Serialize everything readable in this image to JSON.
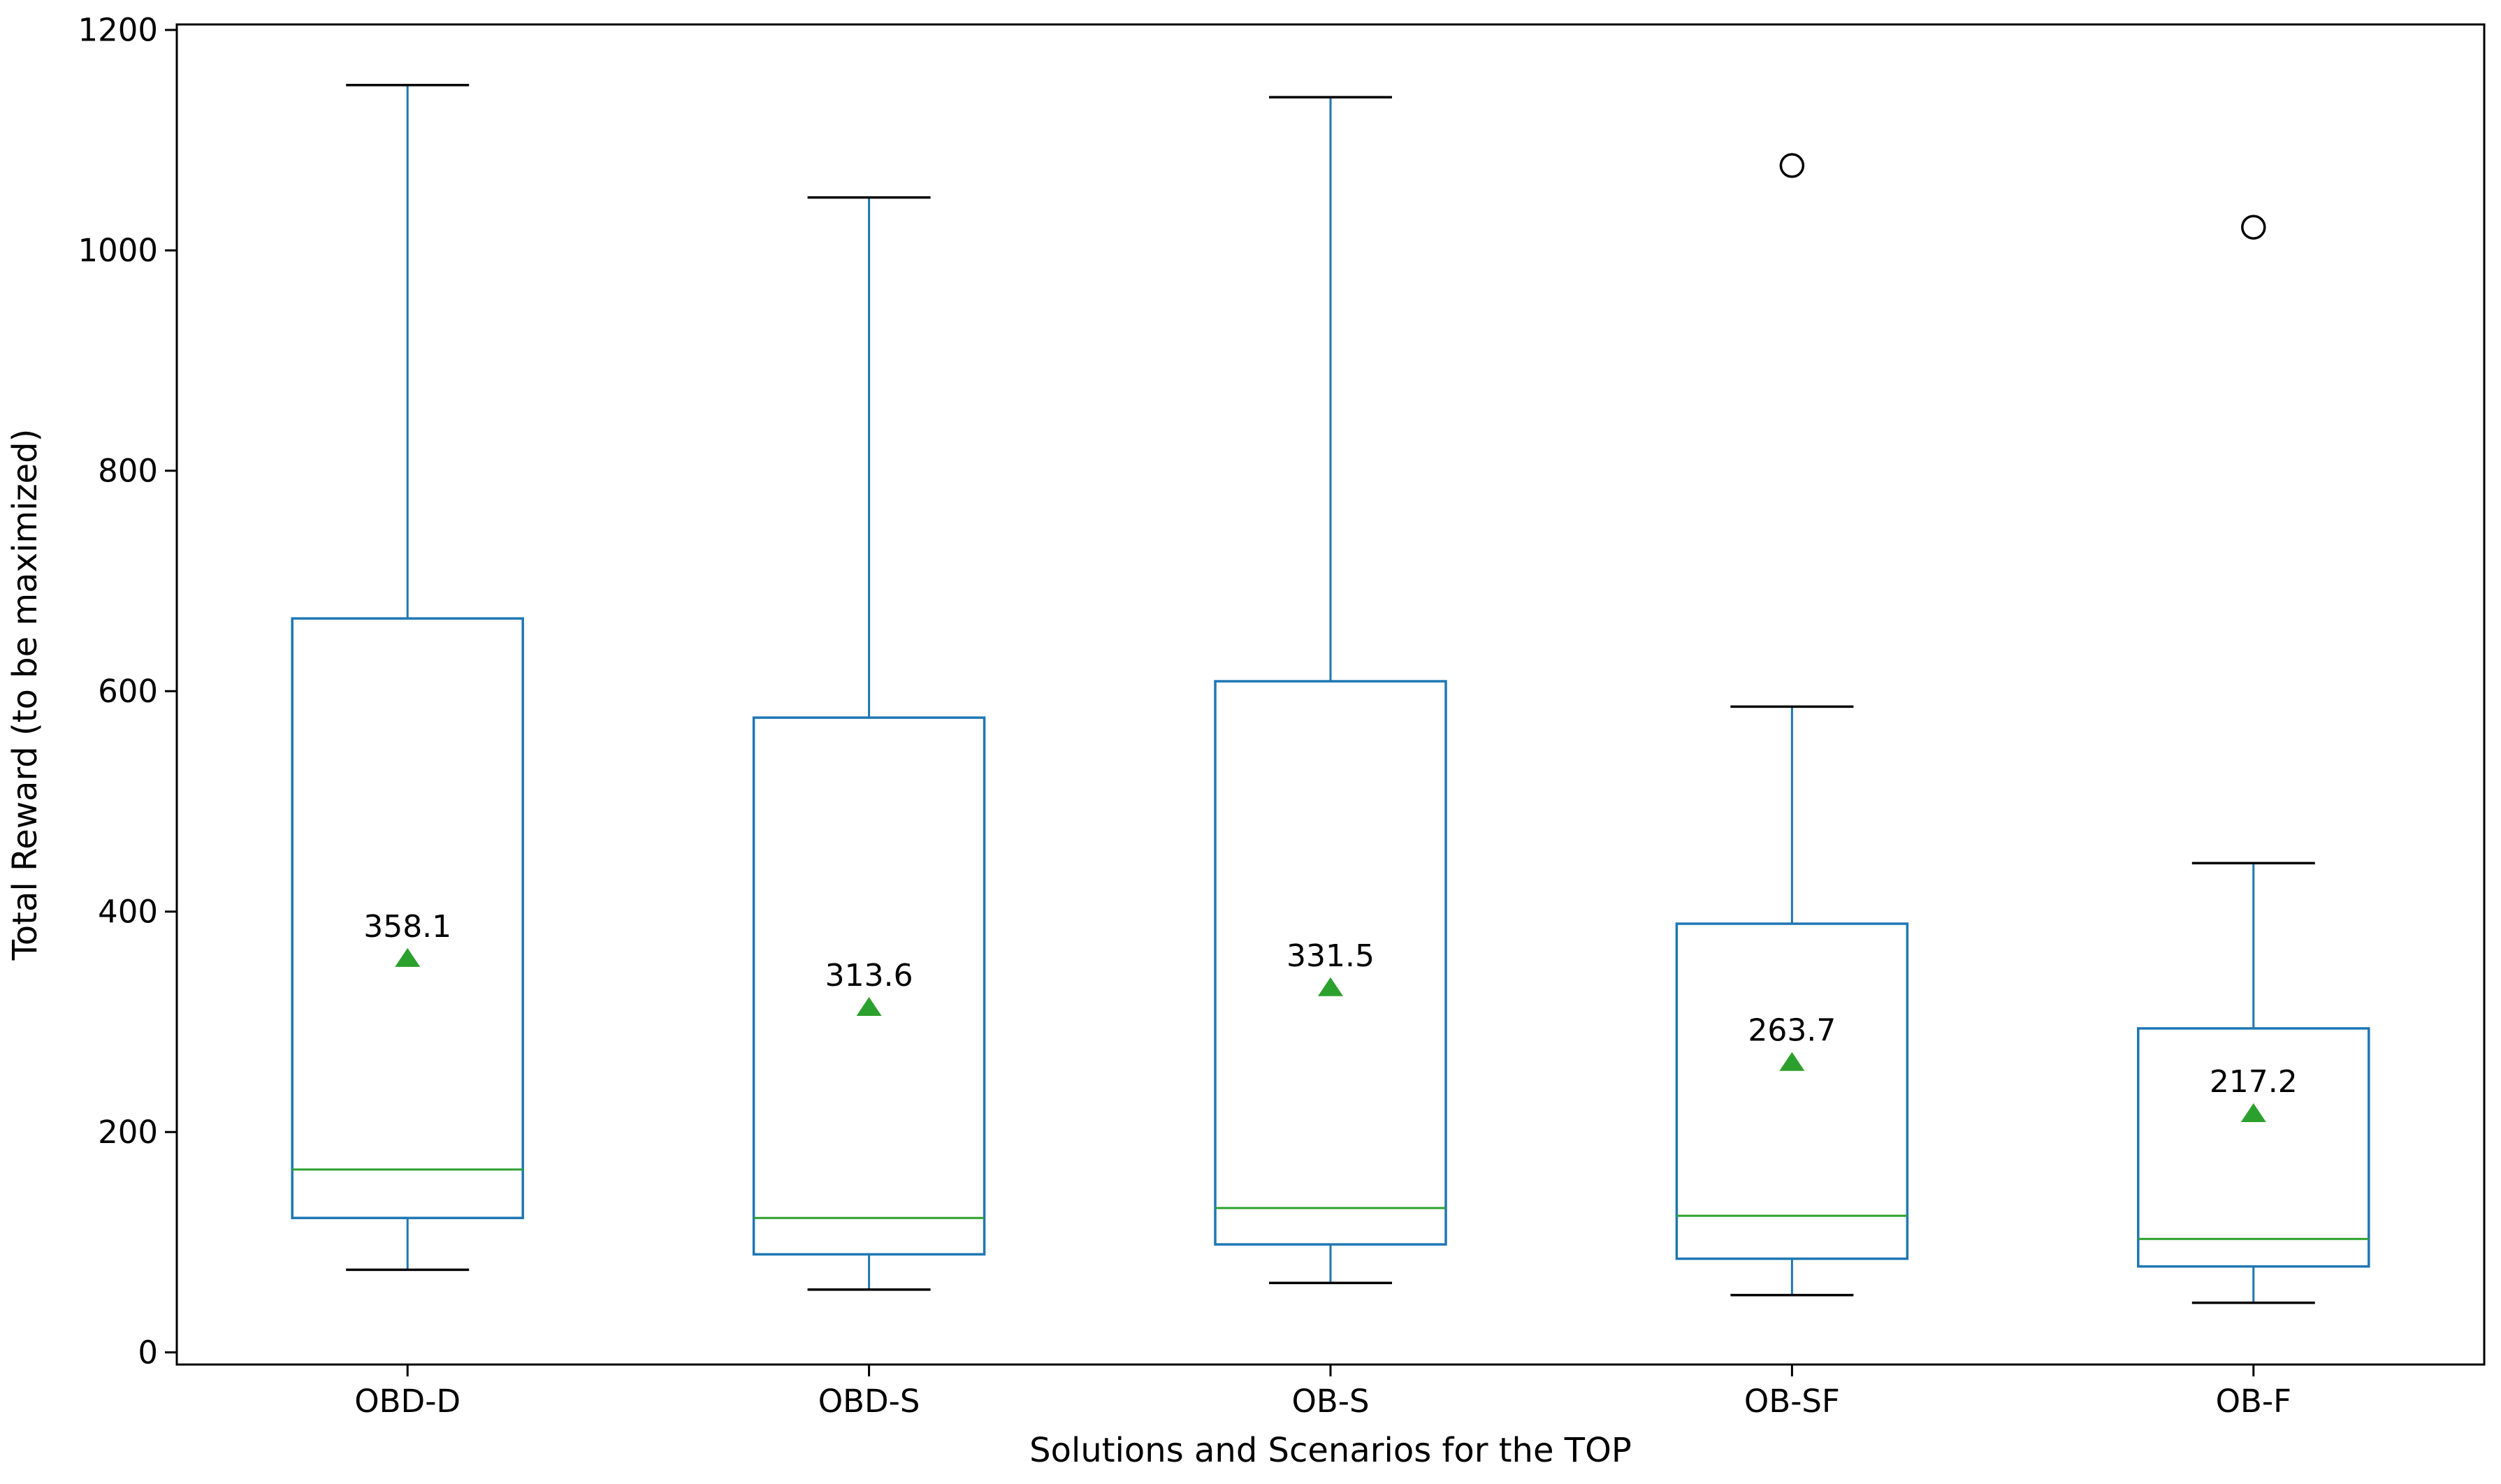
{
  "figure": {
    "background": "#ffffff"
  },
  "chart_data": {
    "type": "boxplot",
    "title": "",
    "xlabel": "Solutions and Scenarios for the TOP",
    "ylabel": "Total Reward (to be maximized)",
    "categories": [
      "OBD-D",
      "OBD-S",
      "OB-S",
      "OB-SF",
      "OB-F"
    ],
    "y_ticks": [
      0,
      200,
      400,
      600,
      800,
      1000,
      1200
    ],
    "ylim": [
      -11,
      1205
    ],
    "grid": false,
    "legend": null,
    "boxes": [
      {
        "label": "OBD-D",
        "whisker_low": 75,
        "q1": 122,
        "median": 166,
        "q3": 666,
        "whisker_high": 1150,
        "mean": 358.1,
        "mean_label": "358.1",
        "outliers": []
      },
      {
        "label": "OBD-S",
        "whisker_low": 57,
        "q1": 89,
        "median": 122,
        "q3": 576,
        "whisker_high": 1048,
        "mean": 313.6,
        "mean_label": "313.6",
        "outliers": []
      },
      {
        "label": "OB-S",
        "whisker_low": 63,
        "q1": 98,
        "median": 131,
        "q3": 609,
        "whisker_high": 1139,
        "mean": 331.5,
        "mean_label": "331.5",
        "outliers": []
      },
      {
        "label": "OB-SF",
        "whisker_low": 52,
        "q1": 85,
        "median": 124,
        "q3": 389,
        "whisker_high": 586,
        "mean": 263.7,
        "mean_label": "263.7",
        "outliers": [
          1077
        ]
      },
      {
        "label": "OB-F",
        "whisker_low": 45,
        "q1": 78,
        "median": 103,
        "q3": 294,
        "whisker_high": 444,
        "mean": 217.2,
        "mean_label": "217.2",
        "outliers": [
          1021
        ]
      }
    ],
    "colors": {
      "box": "#1f77b4",
      "whisker": "#1f77b4",
      "cap": "#000000",
      "median": "#2ca02c",
      "mean_marker": "#2ca02c",
      "flier_edge": "#000000",
      "text": "#000000",
      "spine": "#000000",
      "background": "#ffffff"
    }
  }
}
